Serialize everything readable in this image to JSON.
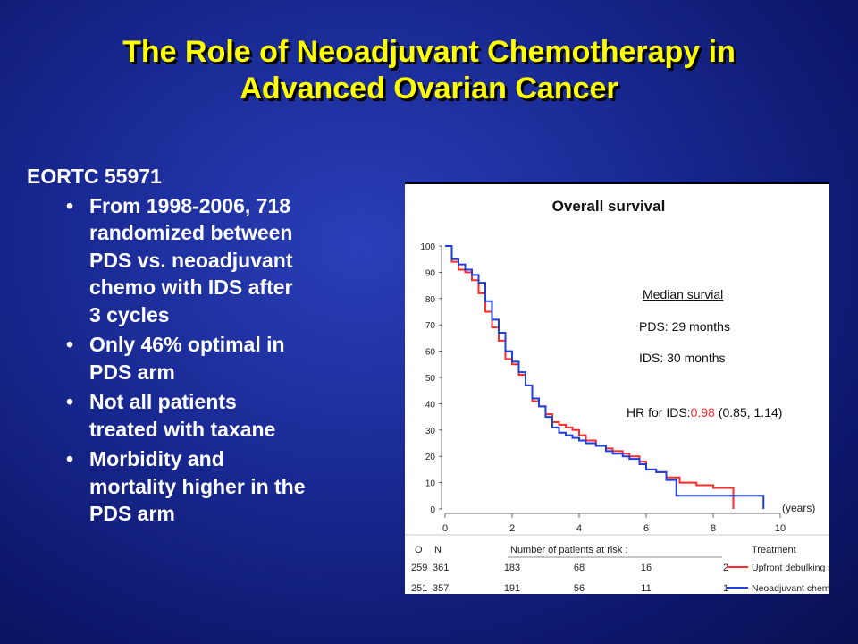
{
  "slide": {
    "title_line1": "The Role of Neoadjuvant Chemotherapy in",
    "title_line2": "Advanced Ovarian Cancer",
    "study_label": "EORTC 55971",
    "bullets": [
      {
        "lines": [
          "From 1998-2006, 718",
          "randomized between",
          "PDS vs. neoadjuvant",
          "chemo with IDS after",
          "3 cycles"
        ]
      },
      {
        "lines": [
          "Only 46% optimal in",
          "PDS arm"
        ]
      },
      {
        "lines": [
          "Not all patients",
          "treated with taxane"
        ]
      },
      {
        "lines": [
          "Morbidity and",
          "mortality higher in the",
          "PDS arm"
        ]
      }
    ],
    "bullet_glyph": "•"
  },
  "chart_data": {
    "type": "line",
    "title": "Overall survival",
    "x_unit_label": "(years)",
    "xlim": [
      0,
      10
    ],
    "ylim": [
      0,
      100
    ],
    "x_ticks": [
      0,
      2,
      4,
      6,
      8,
      10
    ],
    "y_ticks": [
      0,
      10,
      20,
      30,
      40,
      50,
      60,
      70,
      80,
      90,
      100
    ],
    "series": [
      {
        "name": "Upfront debulking s",
        "color": "#ff2a2a",
        "x": [
          0,
          0.2,
          0.4,
          0.6,
          0.8,
          1.0,
          1.2,
          1.4,
          1.6,
          1.8,
          2.0,
          2.2,
          2.4,
          2.6,
          2.8,
          3.0,
          3.2,
          3.4,
          3.6,
          3.8,
          4.0,
          4.2,
          4.5,
          4.8,
          5.0,
          5.3,
          5.5,
          5.8,
          6.0,
          6.3,
          6.6,
          7.0,
          7.5,
          8.0,
          8.6,
          8.6
        ],
        "y": [
          100,
          94,
          91,
          90,
          87,
          82,
          75,
          69,
          64,
          57,
          55,
          51,
          47,
          41,
          39,
          36,
          33,
          32,
          31,
          30,
          28,
          26,
          24,
          23,
          22,
          21,
          20,
          18,
          15,
          14,
          12,
          10,
          9,
          8,
          8,
          0
        ]
      },
      {
        "name": "Neoadjuvant chemo",
        "color": "#1f3fdc",
        "x": [
          0,
          0.2,
          0.4,
          0.6,
          0.8,
          1.0,
          1.2,
          1.4,
          1.6,
          1.8,
          2.0,
          2.2,
          2.4,
          2.6,
          2.8,
          3.0,
          3.2,
          3.4,
          3.6,
          3.8,
          4.0,
          4.2,
          4.5,
          4.8,
          5.0,
          5.3,
          5.5,
          5.8,
          6.0,
          6.3,
          6.6,
          6.9,
          6.9,
          7.5,
          8.0,
          9.5,
          9.5
        ],
        "y": [
          100,
          95,
          93,
          91,
          89,
          86,
          79,
          72,
          67,
          60,
          56,
          52,
          47,
          42,
          39,
          35,
          31,
          29,
          28,
          27,
          26,
          25,
          24,
          22,
          21,
          20,
          19,
          17,
          15,
          14,
          11,
          10,
          5,
          5,
          5,
          5,
          0
        ]
      }
    ],
    "annotations": {
      "median_heading": "Median survial",
      "pds_median": "PDS: 29 months",
      "ids_median": "IDS: 30 months",
      "hr_prefix": "HR for IDS:",
      "hr_value": "0.98",
      "hr_ci": "(0.85, 1.14)",
      "hr_value_color": "#ff2a2a"
    },
    "risk_table": {
      "col_o": "O",
      "col_n": "N",
      "heading": "Number of patients at risk :",
      "treatment_heading": "Treatment",
      "rows": [
        {
          "o": "259",
          "n": "361",
          "at_risk": [
            "183",
            "68",
            "16",
            "2"
          ],
          "treatment": "Upfront debulking s",
          "color": "#ff2a2a"
        },
        {
          "o": "251",
          "n": "357",
          "at_risk": [
            "191",
            "56",
            "11",
            "1"
          ],
          "treatment": "Neoadjuvant chemo",
          "color": "#1f3fdc"
        }
      ]
    }
  }
}
